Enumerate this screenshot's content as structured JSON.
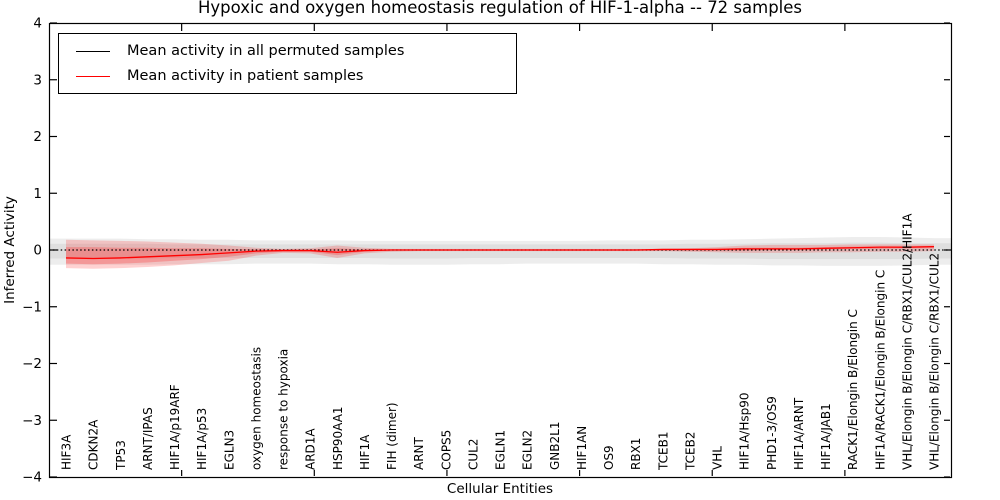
{
  "figure": {
    "title": "Hypoxic and oxygen homeostasis regulation of HIF-1-alpha -- 72 samples",
    "xlabel": "Cellular Entities",
    "ylabel": "Inferred Activity"
  },
  "legend": {
    "items": [
      {
        "label": "Mean activity in all permuted samples",
        "color": "#000000"
      },
      {
        "label": "Mean activity in patient samples",
        "color": "#ff0000"
      }
    ]
  },
  "chart_data": {
    "type": "line",
    "title": "Hypoxic and oxygen homeostasis regulation of HIF-1-alpha -- 72 samples",
    "xlabel": "Cellular Entities",
    "ylabel": "Inferred Activity",
    "ylim": [
      -4,
      4
    ],
    "yticks": [
      -4,
      -3,
      -2,
      -1,
      0,
      1,
      2,
      3,
      4
    ],
    "xlim": [
      0,
      34
    ],
    "xticks": [
      5,
      10,
      15,
      20,
      25,
      30
    ],
    "grid": false,
    "legend_position": "upper left",
    "categories": [
      "HIF3A",
      "CDKN2A",
      "TP53",
      "ARNT/IPAS",
      "HIF1A/p19ARF",
      "HIF1A/p53",
      "EGLN3",
      "oxygen homeostasis",
      "response to hypoxia",
      "ARD1A",
      "HSP90AA1",
      "HIF1A",
      "FIH (dimer)",
      "ARNT",
      "COPS5",
      "CUL2",
      "EGLN1",
      "EGLN2",
      "GNB2L1",
      "HIF1AN",
      "OS9",
      "RBX1",
      "TCEB1",
      "TCEB2",
      "VHL",
      "HIF1A/Hsp90",
      "PHD1-3/OS9",
      "HIF1A/ARNT",
      "HIF1A/JAB1",
      "RACK1/Elongin B/Elongin C",
      "HIF1A/RACK1/Elongin B/Elongin C",
      "VHL/Elongin B/Elongin C/RBX1/CUL2/HIF1A",
      "VHL/Elongin B/Elongin C/RBX1/CUL2"
    ],
    "series": [
      {
        "name": "Mean activity in all permuted samples",
        "color": "#000000",
        "style": "dotted",
        "full_width": true,
        "values": [
          0,
          0,
          0,
          0,
          0,
          0,
          0,
          0,
          0,
          0,
          0,
          0,
          0,
          0,
          0,
          0,
          0,
          0,
          0,
          0,
          0,
          0,
          0,
          0,
          0,
          0,
          0,
          0,
          0,
          0,
          0,
          0,
          0
        ]
      },
      {
        "name": "Mean activity in patient samples",
        "color": "#ff0000",
        "style": "solid",
        "full_width": false,
        "values": [
          -0.14,
          -0.15,
          -0.14,
          -0.12,
          -0.1,
          -0.08,
          -0.05,
          -0.02,
          -0.01,
          -0.01,
          -0.04,
          -0.01,
          0,
          0,
          0,
          0,
          0,
          0,
          0,
          0,
          0,
          0,
          0.01,
          0.01,
          0.01,
          0.02,
          0.02,
          0.02,
          0.03,
          0.04,
          0.05,
          0.05,
          0.06
        ]
      }
    ],
    "bands": [
      {
        "name": "permuted-outer",
        "color": "rgba(0,0,0,0.07)",
        "full_width": true,
        "upper": [
          0.2,
          0.2,
          0.2,
          0.19,
          0.19,
          0.18,
          0.18,
          0.17,
          0.17,
          0.17,
          0.17,
          0.16,
          0.16,
          0.16,
          0.16,
          0.16,
          0.16,
          0.16,
          0.16,
          0.16,
          0.17,
          0.17,
          0.17,
          0.18,
          0.18,
          0.19,
          0.2,
          0.21,
          0.22,
          0.23,
          0.23,
          0.22,
          0.21
        ],
        "lower": [
          -0.26,
          -0.26,
          -0.26,
          -0.26,
          -0.25,
          -0.25,
          -0.25,
          -0.24,
          -0.24,
          -0.24,
          -0.25,
          -0.25,
          -0.26,
          -0.26,
          -0.26,
          -0.25,
          -0.25,
          -0.24,
          -0.24,
          -0.24,
          -0.24,
          -0.24,
          -0.25,
          -0.25,
          -0.26,
          -0.26,
          -0.27,
          -0.27,
          -0.28,
          -0.28,
          -0.28,
          -0.27,
          -0.26
        ]
      },
      {
        "name": "permuted-inner",
        "color": "rgba(0,0,0,0.06)",
        "full_width": true,
        "upper": [
          0.11,
          0.11,
          0.11,
          0.11,
          0.1,
          0.1,
          0.1,
          0.1,
          0.1,
          0.1,
          0.1,
          0.1,
          0.1,
          0.1,
          0.1,
          0.1,
          0.1,
          0.1,
          0.1,
          0.1,
          0.1,
          0.1,
          0.1,
          0.11,
          0.11,
          0.11,
          0.12,
          0.12,
          0.12,
          0.13,
          0.13,
          0.12,
          0.12
        ],
        "lower": [
          -0.15,
          -0.15,
          -0.15,
          -0.15,
          -0.14,
          -0.14,
          -0.14,
          -0.14,
          -0.14,
          -0.14,
          -0.14,
          -0.14,
          -0.15,
          -0.15,
          -0.15,
          -0.14,
          -0.14,
          -0.14,
          -0.14,
          -0.14,
          -0.14,
          -0.14,
          -0.14,
          -0.15,
          -0.15,
          -0.15,
          -0.16,
          -0.16,
          -0.16,
          -0.16,
          -0.16,
          -0.16,
          -0.15
        ]
      },
      {
        "name": "patient-outer",
        "color": "rgba(255,0,0,0.18)",
        "full_width": false,
        "upper": [
          0.18,
          0.17,
          0.16,
          0.15,
          0.13,
          0.11,
          0.08,
          0.04,
          0.02,
          0.03,
          0.08,
          0.04,
          0.02,
          0.02,
          0.02,
          0.02,
          0.02,
          0.02,
          0.02,
          0.02,
          0.02,
          0.02,
          0.02,
          0.03,
          0.05,
          0.08,
          0.09,
          0.09,
          0.09,
          0.1,
          0.1,
          0.1,
          0.1
        ],
        "lower": [
          -0.32,
          -0.33,
          -0.32,
          -0.3,
          -0.27,
          -0.23,
          -0.19,
          -0.1,
          -0.05,
          -0.06,
          -0.14,
          -0.06,
          -0.03,
          -0.02,
          -0.02,
          -0.02,
          -0.02,
          -0.02,
          -0.02,
          -0.02,
          -0.02,
          -0.02,
          -0.02,
          -0.03,
          -0.04,
          -0.05,
          -0.05,
          -0.05,
          -0.04,
          -0.04,
          -0.03,
          -0.03,
          -0.02
        ]
      },
      {
        "name": "patient-inner",
        "color": "rgba(255,0,0,0.22)",
        "full_width": false,
        "upper": [
          0.05,
          0.05,
          0.04,
          0.04,
          0.03,
          0.03,
          0.02,
          0.01,
          0.01,
          0.01,
          0.03,
          0.01,
          0.01,
          0.01,
          0.01,
          0.01,
          0.01,
          0.01,
          0.01,
          0.01,
          0.01,
          0.01,
          0.01,
          0.01,
          0.02,
          0.04,
          0.04,
          0.04,
          0.05,
          0.06,
          0.06,
          0.06,
          0.07
        ],
        "lower": [
          -0.24,
          -0.25,
          -0.24,
          -0.22,
          -0.19,
          -0.16,
          -0.12,
          -0.06,
          -0.03,
          -0.03,
          -0.09,
          -0.03,
          -0.01,
          -0.01,
          -0.01,
          -0.01,
          -0.01,
          -0.01,
          -0.01,
          -0.01,
          -0.01,
          -0.01,
          -0.01,
          -0.01,
          -0.01,
          -0.01,
          0,
          0,
          0.01,
          0.02,
          0.02,
          0.03,
          0.03
        ]
      }
    ]
  }
}
